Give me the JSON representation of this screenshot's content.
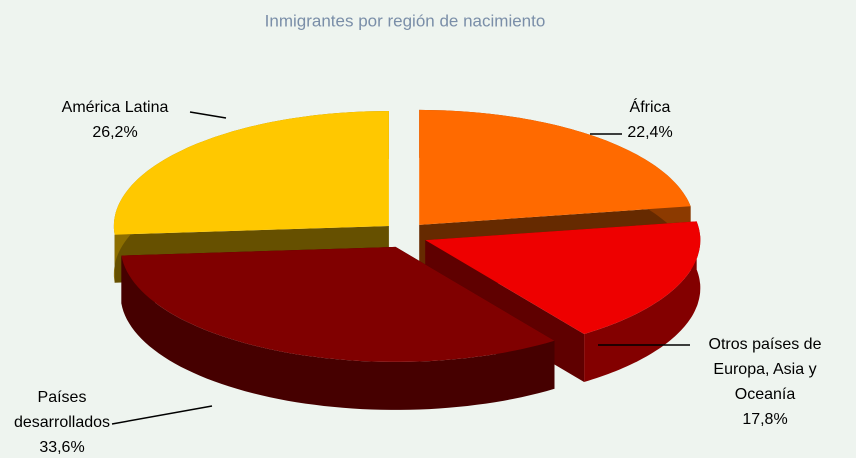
{
  "chart_data": {
    "type": "pie3d",
    "title": "Inmigrantes por región de nacimiento",
    "categories": [
      "África",
      "Otros países de Europa, Asia y Oceanía",
      "Países desarrollados",
      "América Latina"
    ],
    "values": [
      22.4,
      17.8,
      33.6,
      26.2
    ],
    "value_labels": [
      "22,4%",
      "17,8%",
      "33,6%",
      "26,2%"
    ],
    "colors": [
      "#ff6a00",
      "#ee0000",
      "#800000",
      "#ffc800"
    ]
  }
}
